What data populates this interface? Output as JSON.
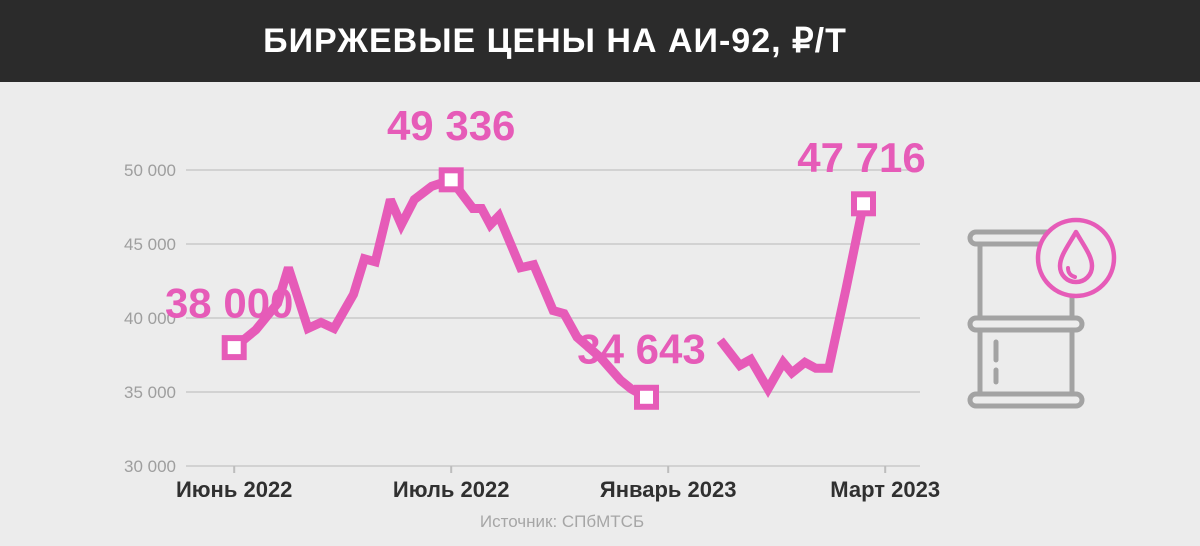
{
  "title": "БИРЖЕВЫЕ ЦЕНЫ НА АИ-92, ₽/Т",
  "source": "Источник: СПбМТСБ",
  "colors": {
    "line": "#e65bb8",
    "header_bg": "#2b2b2b",
    "background": "#ececec",
    "grid": "#c9c9c9"
  },
  "icon": "oil-barrel-icon",
  "chart_data": {
    "type": "line",
    "ylim": [
      30000,
      50000
    ],
    "yticks": [
      {
        "value": 30000,
        "label": "30 000"
      },
      {
        "value": 35000,
        "label": "35 000"
      },
      {
        "value": 40000,
        "label": "40 000"
      },
      {
        "value": 45000,
        "label": "45 000"
      },
      {
        "value": 50000,
        "label": "50 000"
      }
    ],
    "xlim": [
      0,
      46
    ],
    "xticks": [
      {
        "x": 1,
        "label": "Июнь 2022"
      },
      {
        "x": 11,
        "label": "Июль 2022"
      },
      {
        "x": 21,
        "label": "Январь 2023"
      },
      {
        "x": 31,
        "label": "Март 2023"
      }
    ],
    "grid": true,
    "series": [
      {
        "points": [
          [
            1,
            38000
          ],
          [
            2,
            39200
          ],
          [
            3,
            41000
          ],
          [
            3.5,
            43400
          ],
          [
            4.4,
            39300
          ],
          [
            5,
            39700
          ],
          [
            5.6,
            39300
          ],
          [
            6.5,
            41600
          ],
          [
            7,
            44000
          ],
          [
            7.5,
            43800
          ],
          [
            8.2,
            48000
          ],
          [
            8.7,
            46300
          ],
          [
            9.3,
            48000
          ],
          [
            10.1,
            48900
          ],
          [
            11,
            49336
          ],
          [
            12,
            47400
          ],
          [
            12.4,
            47400
          ],
          [
            12.8,
            46300
          ],
          [
            13.2,
            46900
          ],
          [
            14.2,
            43400
          ],
          [
            14.8,
            43600
          ],
          [
            15.7,
            40500
          ],
          [
            16.2,
            40300
          ],
          [
            16.8,
            38700
          ],
          [
            17.9,
            37300
          ],
          [
            18.8,
            35800
          ],
          [
            19.3,
            35200
          ],
          [
            20,
            34643
          ]
        ]
      },
      {
        "points": [
          [
            23.4,
            38500
          ],
          [
            24.3,
            36800
          ],
          [
            24.8,
            37200
          ],
          [
            25.6,
            35200
          ],
          [
            26.3,
            37000
          ],
          [
            26.7,
            36300
          ],
          [
            27.3,
            37000
          ],
          [
            27.8,
            36600
          ],
          [
            28.4,
            36600
          ],
          [
            29.2,
            42000
          ],
          [
            30,
            47716
          ]
        ]
      }
    ],
    "markers": [
      {
        "x": 1,
        "y": 38000,
        "label": "38 000"
      },
      {
        "x": 11,
        "y": 49336,
        "label": "49 336"
      },
      {
        "x": 20,
        "y": 34643,
        "label": "34 643"
      },
      {
        "x": 30,
        "y": 47716,
        "label": "47 716"
      }
    ]
  }
}
